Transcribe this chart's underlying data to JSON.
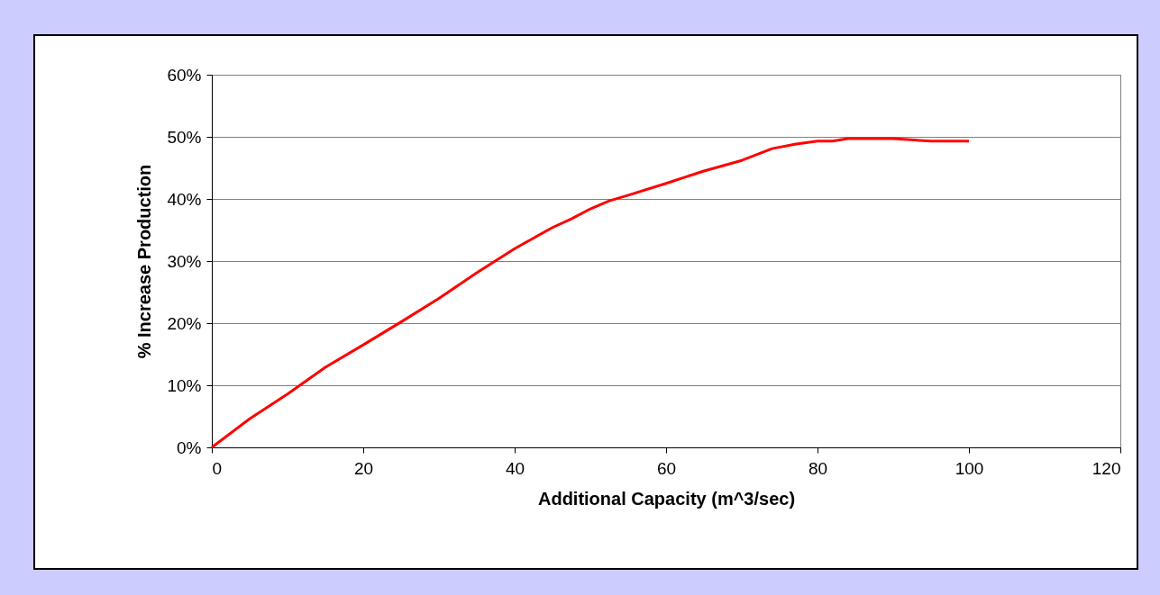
{
  "chart_data": {
    "type": "line",
    "xlabel": "Additional Capacity (m^3/sec)",
    "ylabel": "% Increase Production",
    "x": [
      0,
      5,
      10,
      15,
      20,
      25,
      30,
      35,
      40,
      45,
      47.5,
      50,
      52.5,
      55,
      60,
      65,
      70,
      74,
      77,
      80,
      82,
      84,
      90,
      95,
      100
    ],
    "series": [
      {
        "color": "#ff0000",
        "values": [
          0,
          4.6,
          8.6,
          12.9,
          16.5,
          20.2,
          24,
          28.1,
          32,
          35.4,
          36.8,
          38.4,
          39.7,
          40.6,
          42.5,
          44.5,
          46.2,
          48.1,
          48.8,
          49.3,
          49.3,
          49.7,
          49.7,
          49.3,
          49.3
        ]
      }
    ],
    "xlim": [
      0,
      120
    ],
    "xticks": [
      0,
      20,
      40,
      60,
      80,
      100,
      120
    ],
    "ylim": [
      0,
      60
    ],
    "yticks": [
      {
        "value": 0,
        "label": "0%"
      },
      {
        "value": 10,
        "label": "10%"
      },
      {
        "value": 20,
        "label": "20%"
      },
      {
        "value": 30,
        "label": "30%"
      },
      {
        "value": 40,
        "label": "40%"
      },
      {
        "value": 50,
        "label": "50%"
      },
      {
        "value": 60,
        "label": "60%"
      }
    ],
    "grid": "y",
    "marker": "none",
    "line_style": "solid"
  }
}
